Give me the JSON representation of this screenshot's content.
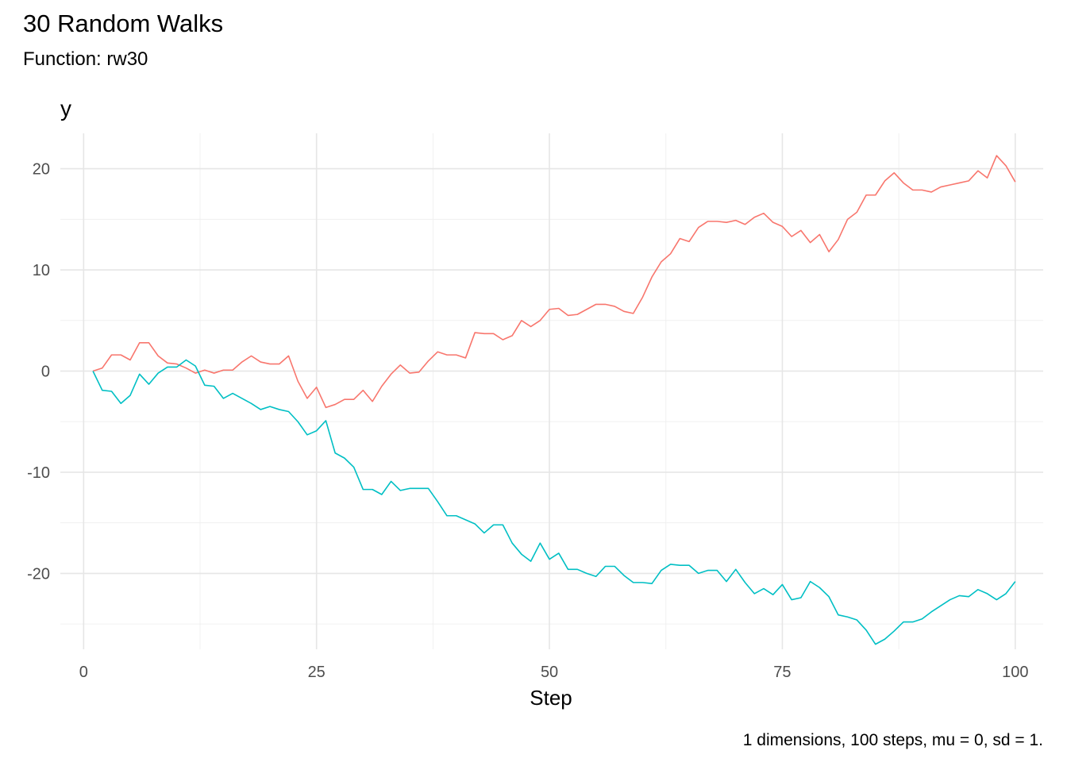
{
  "chart_data": {
    "type": "line",
    "title": "30 Random Walks",
    "subtitle": "Function: rw30",
    "caption": "1 dimensions, 100 steps, mu = 0, sd = 1.",
    "xlabel": "Step",
    "ylabel": "y",
    "xlim": [
      -2.5,
      103
    ],
    "ylim": [
      -27.5,
      23.5
    ],
    "x_ticks": [
      0,
      25,
      50,
      75,
      100
    ],
    "y_ticks": [
      -20,
      -10,
      0,
      10,
      20
    ],
    "x_tick_labels": [
      "0",
      "25",
      "50",
      "75",
      "100"
    ],
    "y_tick_labels": [
      "-20",
      "-10",
      "0",
      "10",
      "20"
    ],
    "grid": true,
    "legend": "none",
    "x": [
      1,
      2,
      3,
      4,
      5,
      6,
      7,
      8,
      9,
      10,
      11,
      12,
      13,
      14,
      15,
      16,
      17,
      18,
      19,
      20,
      21,
      22,
      23,
      24,
      25,
      26,
      27,
      28,
      29,
      30,
      31,
      32,
      33,
      34,
      35,
      36,
      37,
      38,
      39,
      40,
      41,
      42,
      43,
      44,
      45,
      46,
      47,
      48,
      49,
      50,
      51,
      52,
      53,
      54,
      55,
      56,
      57,
      58,
      59,
      60,
      61,
      62,
      63,
      64,
      65,
      66,
      67,
      68,
      69,
      70,
      71,
      72,
      73,
      74,
      75,
      76,
      77,
      78,
      79,
      80,
      81,
      82,
      83,
      84,
      85,
      86,
      87,
      88,
      89,
      90,
      91,
      92,
      93,
      94,
      95,
      96,
      97,
      98,
      99,
      100
    ],
    "series": [
      {
        "color": "#F8766D",
        "values": [
          0,
          0.3,
          1.6,
          1.6,
          1.1,
          2.8,
          2.8,
          1.5,
          0.8,
          0.7,
          0.3,
          -0.2,
          0.1,
          -0.2,
          0.1,
          0.1,
          0.9,
          1.5,
          0.9,
          0.7,
          0.7,
          1.5,
          -1.0,
          -2.7,
          -1.6,
          -3.6,
          -3.3,
          -2.8,
          -2.8,
          -1.9,
          -3.0,
          -1.5,
          -0.3,
          0.6,
          -0.2,
          -0.1,
          1.0,
          1.9,
          1.6,
          1.6,
          1.3,
          3.8,
          3.7,
          3.7,
          3.1,
          3.5,
          5.0,
          4.4,
          5.0,
          6.1,
          6.2,
          5.5,
          5.6,
          6.1,
          6.6,
          6.6,
          6.4,
          5.9,
          5.7,
          7.3,
          9.3,
          10.8,
          11.6,
          13.1,
          12.8,
          14.2,
          14.8,
          14.8,
          14.7,
          14.9,
          14.5,
          15.2,
          15.6,
          14.7,
          14.3,
          13.3,
          13.9,
          12.7,
          13.5,
          11.8,
          13.0,
          15.0,
          15.7,
          17.4,
          17.4,
          18.8,
          19.6,
          18.6,
          17.9,
          17.9,
          17.7,
          18.2,
          18.4,
          18.6,
          18.8,
          19.8,
          19.1,
          21.3,
          20.3,
          18.7
        ]
      },
      {
        "color": "#00BFC4",
        "values": [
          0,
          -1.9,
          -2.0,
          -3.2,
          -2.4,
          -0.3,
          -1.3,
          -0.2,
          0.4,
          0.4,
          1.1,
          0.5,
          -1.4,
          -1.5,
          -2.7,
          -2.2,
          -2.7,
          -3.2,
          -3.8,
          -3.5,
          -3.8,
          -4.0,
          -5.0,
          -6.3,
          -5.9,
          -4.9,
          -8.1,
          -8.6,
          -9.5,
          -11.7,
          -11.7,
          -12.2,
          -10.9,
          -11.8,
          -11.6,
          -11.6,
          -11.6,
          -12.9,
          -14.3,
          -14.3,
          -14.7,
          -15.1,
          -16.0,
          -15.2,
          -15.2,
          -17.0,
          -18.1,
          -18.8,
          -17.0,
          -18.6,
          -18.0,
          -19.6,
          -19.6,
          -20.0,
          -20.3,
          -19.3,
          -19.3,
          -20.2,
          -20.9,
          -20.9,
          -21.0,
          -19.7,
          -19.1,
          -19.2,
          -19.2,
          -20.0,
          -19.7,
          -19.7,
          -20.8,
          -19.6,
          -20.9,
          -22.0,
          -21.5,
          -22.1,
          -21.1,
          -22.6,
          -22.4,
          -20.8,
          -21.4,
          -22.3,
          -24.1,
          -24.3,
          -24.6,
          -25.6,
          -27.0,
          -26.5,
          -25.7,
          -24.8,
          -24.8,
          -24.5,
          -23.8,
          -23.2,
          -22.6,
          -22.2,
          -22.3,
          -21.6,
          -22.0,
          -22.6,
          -22.0,
          -20.8
        ]
      }
    ]
  }
}
